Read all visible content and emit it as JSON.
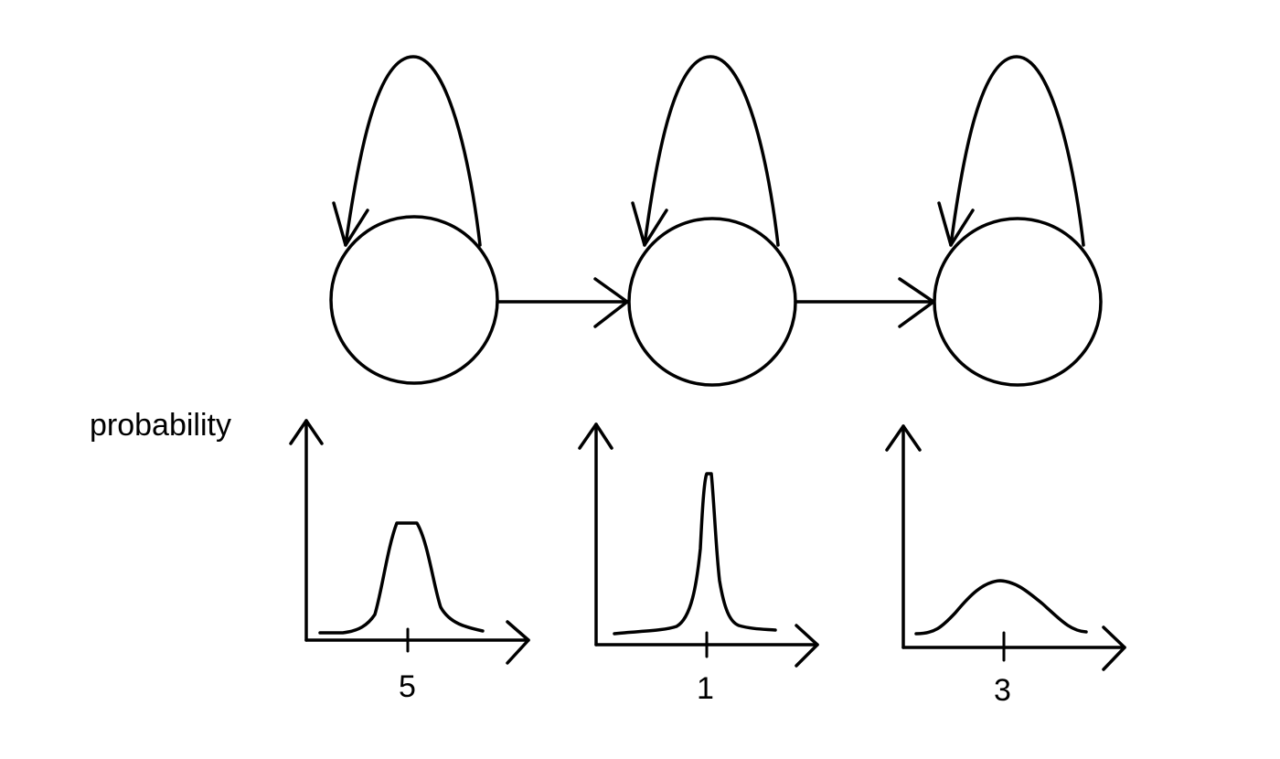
{
  "diagram": {
    "y_axis_label": "probability",
    "states": [
      {
        "id": "state-1",
        "self_loop": true,
        "emission_mean_label": "5",
        "distribution_shape": "moderate-peak"
      },
      {
        "id": "state-2",
        "self_loop": true,
        "emission_mean_label": "1",
        "distribution_shape": "sharp-peak"
      },
      {
        "id": "state-3",
        "self_loop": true,
        "emission_mean_label": "3",
        "distribution_shape": "broad-peak"
      }
    ],
    "transitions": [
      {
        "from": "state-1",
        "to": "state-2"
      },
      {
        "from": "state-2",
        "to": "state-3"
      }
    ],
    "colors": {
      "stroke": "#000000",
      "background": "#ffffff"
    }
  }
}
